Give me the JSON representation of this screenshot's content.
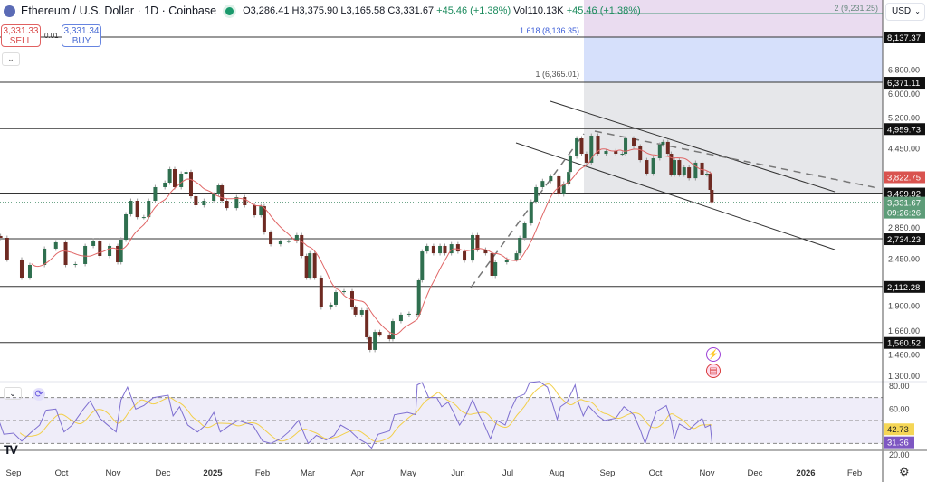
{
  "header": {
    "symbol_title": "Ethereum / U.S. Dollar · 1D · Coinbase",
    "open": "O3,286.41",
    "high": "H3,375.90",
    "low": "L3,165.58",
    "close": "C3,331.67",
    "change": "+45.46 (+1.38%)",
    "volume": "Vol110.13K",
    "change2": "+45.46 (+1.38%)"
  },
  "trade": {
    "sell_price": "3,331.33",
    "sell_label": "SELL",
    "spread": "0.01",
    "buy_price": "3,331.34",
    "buy_label": "BUY"
  },
  "currency": "USD",
  "icons": {
    "collapse": "chevron-down-icon",
    "logo": "tradingview-logo",
    "settings": "gear-icon",
    "refresh": "refresh-icon",
    "event1": "flash-event-icon",
    "event2": "us-flag-event-icon"
  },
  "chart_data": {
    "type": "candlestick",
    "title": "Ethereum / U.S. Dollar · 1D · Coinbase",
    "yscale": "log",
    "ylim": [
      1250,
      9500
    ],
    "grid": false,
    "x_ticks": [
      "Sep",
      "Oct",
      "Nov",
      "Dec",
      "2025",
      "Feb",
      "Mar",
      "Apr",
      "May",
      "Jun",
      "Jul",
      "Aug",
      "Sep",
      "Oct",
      "Nov",
      "Dec",
      "2026",
      "Feb"
    ],
    "y_ticks": [
      "6,800.00",
      "6,000.00",
      "5,200.00",
      "4,450.00",
      "2,850.00",
      "2,450.00",
      "1,900.00",
      "1,660.00",
      "1,460.00",
      "1,300.00"
    ],
    "last_price": "3,331.67",
    "countdown": "09:26:26",
    "ma_value": "3,822.75",
    "horizontal_levels": [
      "8,137.37",
      "6,371.11",
      "4,959.73",
      "3,499.92",
      "2,734.23",
      "2,112.28",
      "1,560.52"
    ],
    "fib_labels": [
      "2 (9,231.25)",
      "1.618 (8,136.35)",
      "1 (6,365.01)"
    ],
    "colors": {
      "up": "#2f6f4f",
      "down": "#6e2a22",
      "ma": "#e06666",
      "rsi": "#7e6fd0",
      "rsi_ma": "#f2cf4a",
      "fib_gray": "#e6e7ea",
      "fib_blue": "#d6e0fb",
      "fib_pink": "#eadcf0"
    },
    "closes": [
      [
        "2024-08-24",
        2748
      ],
      [
        "2024-08-28",
        2444
      ],
      [
        "2024-09-06",
        2216
      ],
      [
        "2024-09-11",
        2373
      ],
      [
        "2024-09-20",
        2592
      ],
      [
        "2024-09-27",
        2682
      ],
      [
        "2024-10-03",
        2373
      ],
      [
        "2024-10-09",
        2385
      ],
      [
        "2024-10-15",
        2630
      ],
      [
        "2024-10-20",
        2708
      ],
      [
        "2024-10-24",
        2492
      ],
      [
        "2024-10-30",
        2630
      ],
      [
        "2024-11-04",
        2408
      ],
      [
        "2024-11-06",
        2721
      ],
      [
        "2024-11-09",
        3121
      ],
      [
        "2024-11-12",
        3358
      ],
      [
        "2024-11-16",
        3074
      ],
      [
        "2024-11-20",
        3074
      ],
      [
        "2024-11-23",
        3358
      ],
      [
        "2024-11-27",
        3614
      ],
      [
        "2024-12-03",
        3703
      ],
      [
        "2024-12-06",
        3985
      ],
      [
        "2024-12-09",
        3614
      ],
      [
        "2024-12-13",
        3889
      ],
      [
        "2024-12-16",
        3925
      ],
      [
        "2024-12-19",
        3441
      ],
      [
        "2024-12-22",
        3277
      ],
      [
        "2024-12-27",
        3358
      ],
      [
        "2025-01-02",
        3475
      ],
      [
        "2025-01-05",
        3649
      ],
      [
        "2025-01-07",
        3358
      ],
      [
        "2025-01-10",
        3228
      ],
      [
        "2025-01-16",
        3424
      ],
      [
        "2025-01-21",
        3277
      ],
      [
        "2025-01-27",
        3105
      ],
      [
        "2025-01-31",
        3260
      ],
      [
        "2025-02-02",
        2830
      ],
      [
        "2025-02-06",
        2655
      ],
      [
        "2025-02-12",
        2700
      ],
      [
        "2025-02-17",
        2700
      ],
      [
        "2025-02-22",
        2789
      ],
      [
        "2025-02-25",
        2492
      ],
      [
        "2025-02-28",
        2216
      ],
      [
        "2025-03-02",
        2528
      ],
      [
        "2025-03-05",
        2216
      ],
      [
        "2025-03-09",
        1886
      ],
      [
        "2025-03-15",
        1914
      ],
      [
        "2025-03-18",
        2049
      ],
      [
        "2025-03-23",
        2059
      ],
      [
        "2025-03-28",
        1886
      ],
      [
        "2025-03-30",
        1814
      ],
      [
        "2025-04-03",
        1858
      ],
      [
        "2025-04-06",
        1605
      ],
      [
        "2025-04-08",
        1499
      ],
      [
        "2025-04-11",
        1652
      ],
      [
        "2025-04-14",
        1628
      ],
      [
        "2025-04-20",
        1589
      ],
      [
        "2025-04-22",
        1752
      ],
      [
        "2025-04-27",
        1814
      ],
      [
        "2025-05-02",
        1823
      ],
      [
        "2025-05-07",
        1814
      ],
      [
        "2025-05-08",
        2184
      ],
      [
        "2025-05-10",
        2553
      ],
      [
        "2025-05-13",
        2630
      ],
      [
        "2025-05-17",
        2528
      ],
      [
        "2025-05-21",
        2630
      ],
      [
        "2025-05-24",
        2528
      ],
      [
        "2025-05-28",
        2655
      ],
      [
        "2025-06-01",
        2553
      ],
      [
        "2025-06-05",
        2431
      ],
      [
        "2025-06-10",
        2789
      ],
      [
        "2025-06-13",
        2578
      ],
      [
        "2025-06-18",
        2528
      ],
      [
        "2025-06-22",
        2238
      ],
      [
        "2025-06-24",
        2408
      ],
      [
        "2025-07-01",
        2444
      ],
      [
        "2025-07-07",
        2528
      ],
      [
        "2025-07-09",
        2748
      ],
      [
        "2025-07-12",
        2972
      ],
      [
        "2025-07-16",
        3342
      ],
      [
        "2025-07-19",
        3614
      ],
      [
        "2025-07-23",
        3737
      ],
      [
        "2025-07-28",
        3833
      ],
      [
        "2025-08-02",
        3475
      ],
      [
        "2025-08-05",
        3685
      ],
      [
        "2025-08-08",
        3925
      ],
      [
        "2025-08-09",
        4267
      ],
      [
        "2025-08-13",
        4706
      ],
      [
        "2025-08-16",
        4330
      ],
      [
        "2025-08-19",
        4125
      ],
      [
        "2025-08-22",
        4775
      ],
      [
        "2025-08-26",
        4330
      ],
      [
        "2025-08-31",
        4394
      ],
      [
        "2025-09-06",
        4330
      ],
      [
        "2025-09-10",
        4330
      ],
      [
        "2025-09-12",
        4706
      ],
      [
        "2025-09-17",
        4503
      ],
      [
        "2025-09-21",
        4184
      ],
      [
        "2025-09-25",
        3889
      ],
      [
        "2025-09-29",
        4226
      ],
      [
        "2025-10-03",
        4548
      ],
      [
        "2025-10-05",
        4616
      ],
      [
        "2025-10-08",
        4330
      ],
      [
        "2025-10-10",
        3870
      ],
      [
        "2025-10-12",
        4184
      ],
      [
        "2025-10-15",
        3870
      ],
      [
        "2025-10-18",
        4023
      ],
      [
        "2025-10-21",
        3793
      ],
      [
        "2025-10-25",
        4125
      ],
      [
        "2025-10-29",
        3870
      ],
      [
        "2025-11-01",
        3889
      ],
      [
        "2025-11-03",
        3561
      ],
      [
        "2025-11-04",
        3331.67
      ]
    ],
    "rsi": {
      "ylim": [
        15,
        85
      ],
      "levels": [
        70,
        50,
        30
      ],
      "y_ticks": [
        "80.00",
        "60.00",
        "20.00"
      ],
      "ma_value": "42.73",
      "value": "31.36",
      "points": [
        [
          "2024-08-23",
          50
        ],
        [
          "2024-08-26",
          38
        ],
        [
          "2024-09-01",
          39
        ],
        [
          "2024-09-06",
          32
        ],
        [
          "2024-09-12",
          40
        ],
        [
          "2024-09-17",
          46
        ],
        [
          "2024-09-21",
          59
        ],
        [
          "2024-09-27",
          60
        ],
        [
          "2024-10-02",
          40
        ],
        [
          "2024-10-07",
          46
        ],
        [
          "2024-10-14",
          60
        ],
        [
          "2024-10-18",
          67
        ],
        [
          "2024-10-24",
          52
        ],
        [
          "2024-10-28",
          47
        ],
        [
          "2024-11-03",
          40
        ],
        [
          "2024-11-06",
          68
        ],
        [
          "2024-11-10",
          79
        ],
        [
          "2024-11-15",
          60
        ],
        [
          "2024-11-20",
          63
        ],
        [
          "2024-11-26",
          70
        ],
        [
          "2024-12-05",
          72
        ],
        [
          "2024-12-08",
          54
        ],
        [
          "2024-12-12",
          62
        ],
        [
          "2024-12-17",
          46
        ],
        [
          "2024-12-23",
          40
        ],
        [
          "2024-12-28",
          46
        ],
        [
          "2025-01-02",
          57
        ],
        [
          "2025-01-06",
          40
        ],
        [
          "2025-01-12",
          46
        ],
        [
          "2025-01-17",
          50
        ],
        [
          "2025-01-26",
          46
        ],
        [
          "2025-02-01",
          32
        ],
        [
          "2025-02-06",
          30
        ],
        [
          "2025-02-12",
          34
        ],
        [
          "2025-02-17",
          40
        ],
        [
          "2025-02-23",
          50
        ],
        [
          "2025-03-01",
          30
        ],
        [
          "2025-03-06",
          37
        ],
        [
          "2025-03-12",
          33
        ],
        [
          "2025-03-17",
          37
        ],
        [
          "2025-03-21",
          46
        ],
        [
          "2025-03-26",
          42
        ],
        [
          "2025-04-01",
          34
        ],
        [
          "2025-04-06",
          30
        ],
        [
          "2025-04-09",
          26
        ],
        [
          "2025-04-13",
          38
        ],
        [
          "2025-04-20",
          41
        ],
        [
          "2025-04-23",
          55
        ],
        [
          "2025-05-01",
          57
        ],
        [
          "2025-05-06",
          55
        ],
        [
          "2025-05-07",
          81
        ],
        [
          "2025-05-10",
          83
        ],
        [
          "2025-05-14",
          70
        ],
        [
          "2025-05-19",
          70
        ],
        [
          "2025-05-22",
          62
        ],
        [
          "2025-05-26",
          66
        ],
        [
          "2025-05-29",
          58
        ],
        [
          "2025-06-02",
          46
        ],
        [
          "2025-06-06",
          55
        ],
        [
          "2025-06-10",
          68
        ],
        [
          "2025-06-14",
          55
        ],
        [
          "2025-06-17",
          47
        ],
        [
          "2025-06-21",
          34
        ],
        [
          "2025-06-25",
          50
        ],
        [
          "2025-06-30",
          46
        ],
        [
          "2025-07-03",
          58
        ],
        [
          "2025-07-07",
          70
        ],
        [
          "2025-07-12",
          73
        ],
        [
          "2025-07-15",
          83
        ],
        [
          "2025-07-21",
          84
        ],
        [
          "2025-07-26",
          79
        ],
        [
          "2025-08-01",
          51
        ],
        [
          "2025-08-03",
          62
        ],
        [
          "2025-08-07",
          66
        ],
        [
          "2025-08-12",
          81
        ],
        [
          "2025-08-14",
          66
        ],
        [
          "2025-08-17",
          54
        ],
        [
          "2025-08-20",
          63
        ],
        [
          "2025-08-26",
          54
        ],
        [
          "2025-08-30",
          50
        ],
        [
          "2025-09-06",
          52
        ],
        [
          "2025-09-11",
          62
        ],
        [
          "2025-09-17",
          55
        ],
        [
          "2025-09-21",
          42
        ],
        [
          "2025-09-24",
          30
        ],
        [
          "2025-09-28",
          47
        ],
        [
          "2025-10-01",
          58
        ],
        [
          "2025-10-07",
          63
        ],
        [
          "2025-10-10",
          50
        ],
        [
          "2025-10-12",
          34
        ],
        [
          "2025-10-15",
          47
        ],
        [
          "2025-10-21",
          42
        ],
        [
          "2025-10-25",
          47
        ],
        [
          "2025-10-29",
          52
        ],
        [
          "2025-10-31",
          44
        ],
        [
          "2025-11-03",
          46
        ],
        [
          "2025-11-04",
          31.36
        ]
      ]
    }
  }
}
